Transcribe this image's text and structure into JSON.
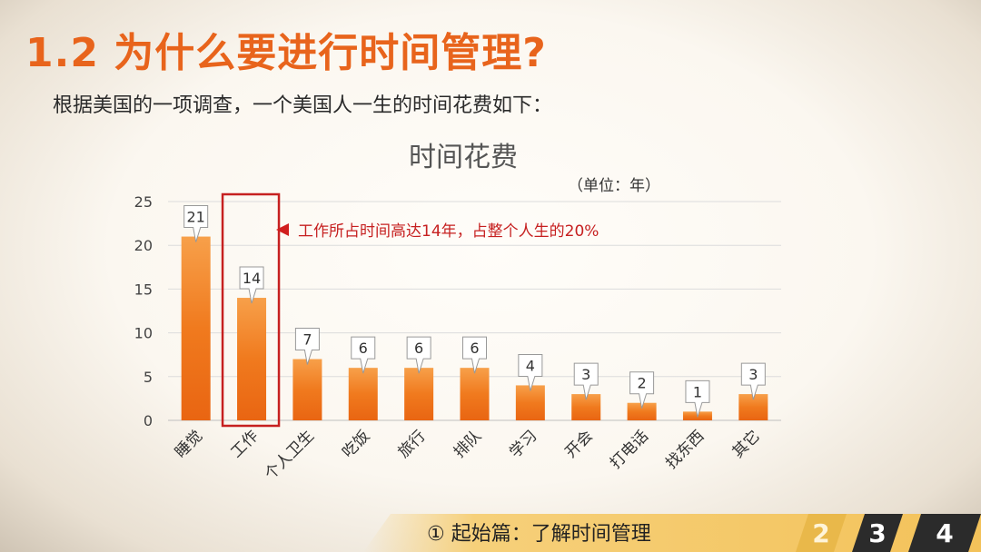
{
  "slide": {
    "title": "1.2 为什么要进行时间管理?",
    "subtitle": "根据美国的一项调查，一个美国人一生的时间花费如下："
  },
  "footer": {
    "section": "① 起始篇：了解时间管理",
    "pages": [
      "2",
      "3",
      "4"
    ]
  },
  "colors": {
    "accent": "#e8641c",
    "bar": "#f07a1e",
    "highlight": "#c62020"
  },
  "chart_data": {
    "type": "bar",
    "title": "时间花费",
    "unit_note": "（单位：年）",
    "categories": [
      "睡觉",
      "工作",
      "个人卫生",
      "吃饭",
      "旅行",
      "排队",
      "学习",
      "开会",
      "打电话",
      "找东西",
      "其它"
    ],
    "values": [
      21,
      14,
      7,
      6,
      6,
      6,
      4,
      3,
      2,
      1,
      3
    ],
    "ylim": [
      0,
      25
    ],
    "yticks": [
      0,
      5,
      10,
      15,
      20,
      25
    ],
    "grid": true,
    "highlight_index": 1,
    "annotation": {
      "parts": [
        "工作所占时间高达",
        "14",
        "年，占整个人生的",
        "20%"
      ]
    }
  }
}
